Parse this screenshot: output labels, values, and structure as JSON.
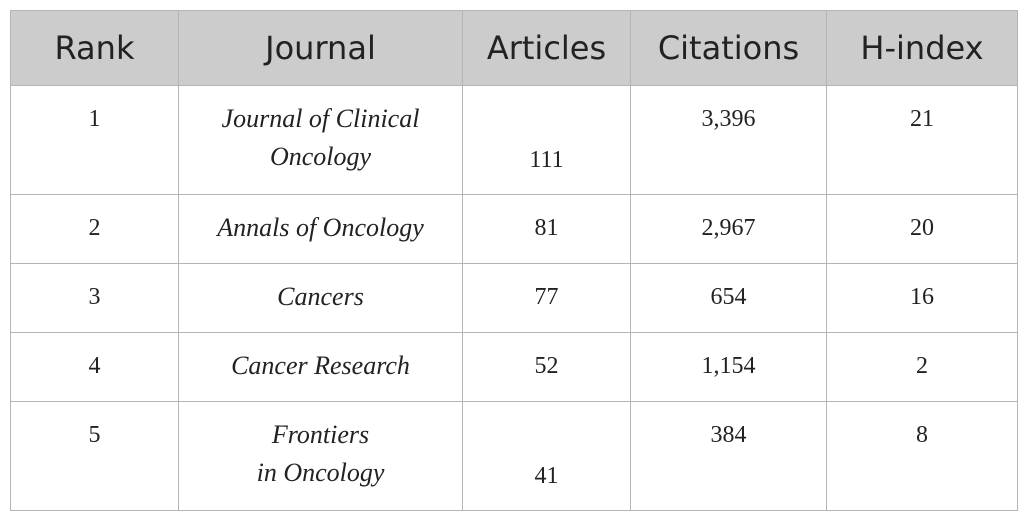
{
  "table": {
    "headers": [
      "Rank",
      "Journal",
      "Articles",
      "Citations",
      "H-index"
    ],
    "rows": [
      {
        "rank": "1",
        "journal_line1": "Journal of Clinical",
        "journal_line2": "Oncology",
        "articles": "111",
        "citations": "3,396",
        "h_index": "21"
      },
      {
        "rank": "2",
        "journal_line1": "Annals of Oncology",
        "articles": "81",
        "citations": "2,967",
        "h_index": "20"
      },
      {
        "rank": "3",
        "journal_line1": "Cancers",
        "articles": "77",
        "citations": "654",
        "h_index": "16"
      },
      {
        "rank": "4",
        "journal_line1": "Cancer Research",
        "articles": "52",
        "citations": "1,154",
        "h_index": "2"
      },
      {
        "rank": "5",
        "journal_line1": "Frontiers",
        "journal_line2": "in Oncology",
        "articles": "41",
        "citations": "384",
        "h_index": "8"
      }
    ]
  },
  "colors": {
    "header_background": "#cccccc",
    "border": "#b5b5b5",
    "text": "#222222"
  }
}
